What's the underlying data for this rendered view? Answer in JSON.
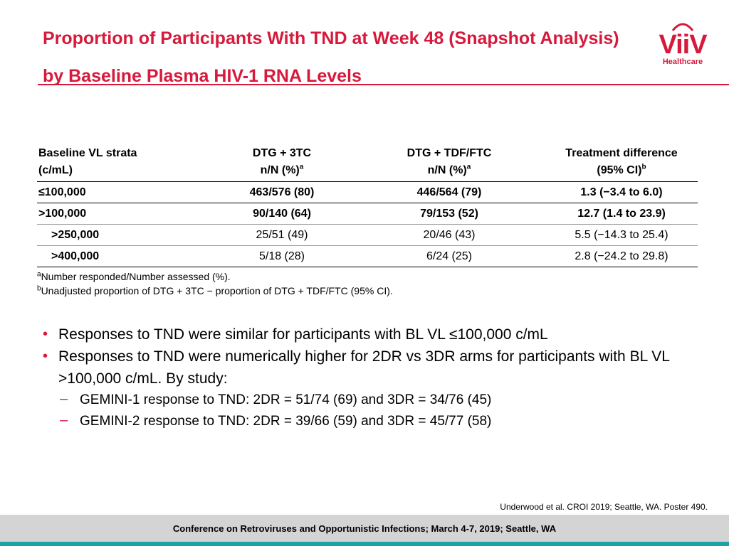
{
  "slide": {
    "title": "Proportion of Participants With TND at Week 48 (Snapshot Analysis) by Baseline Plasma HIV-1 RNA Levels",
    "logo": {
      "word": "ViiV",
      "subtitle": "Healthcare",
      "icon": "viiv-logo-icon",
      "color": "#d7193b"
    }
  },
  "table": {
    "headers": [
      {
        "line1": "Baseline VL strata",
        "line2": "(c/mL)",
        "sup": ""
      },
      {
        "line1": "DTG + 3TC",
        "line2": "n/N (%)",
        "sup": "a"
      },
      {
        "line1": "DTG + TDF/FTC",
        "line2": "n/N (%)",
        "sup": "a"
      },
      {
        "line1": "Treatment difference",
        "line2": "(95% CI)",
        "sup": "b"
      }
    ],
    "rows": [
      {
        "cells": [
          "≤100,000",
          "463/576 (80)",
          "446/564 (79)",
          "1.3 (−3.4 to 6.0)"
        ]
      },
      {
        "cells": [
          ">100,000",
          "90/140 (64)",
          "79/153 (52)",
          "12.7 (1.4 to 23.9)"
        ]
      },
      {
        "cells": [
          ">250,000",
          "25/51 (49)",
          "20/46 (43)",
          "5.5 (−14.3 to 25.4)"
        ]
      },
      {
        "cells": [
          ">400,000",
          "5/18 (28)",
          "6/24 (25)",
          "2.8 (−24.2 to 29.8)"
        ]
      }
    ]
  },
  "footnotes": [
    {
      "mark": "a",
      "text": "Number responded/Number assessed (%)."
    },
    {
      "mark": "b",
      "text": "Unadjusted proportion of DTG + 3TC − proportion of DTG + TDF/FTC (95% CI)."
    }
  ],
  "bullets": [
    {
      "text": "Responses to TND were similar for participants with BL VL ≤100,000 c/mL"
    },
    {
      "text": "Responses to TND were numerically higher for 2DR vs 3DR arms for participants with BL VL >100,000 c/mL. By study:"
    }
  ],
  "sub_bullets": [
    {
      "text": "GEMINI-1 response to TND: 2DR = 51/74 (69) and 3DR = 34/76 (45)"
    },
    {
      "text": "GEMINI-2 response to TND: 2DR = 39/66 (59) and 3DR = 45/77 (58)"
    }
  ],
  "citation": "Underwood et al. CROI 2019; Seattle, WA. Poster 490.",
  "footer": "Conference on Retroviruses and Opportunistic Infections; March 4-7, 2019; Seattle, WA",
  "colors": {
    "accent": "#d7193b",
    "footer_band": "#d4d4d4",
    "footer_stripe": "#1ba3a8"
  }
}
